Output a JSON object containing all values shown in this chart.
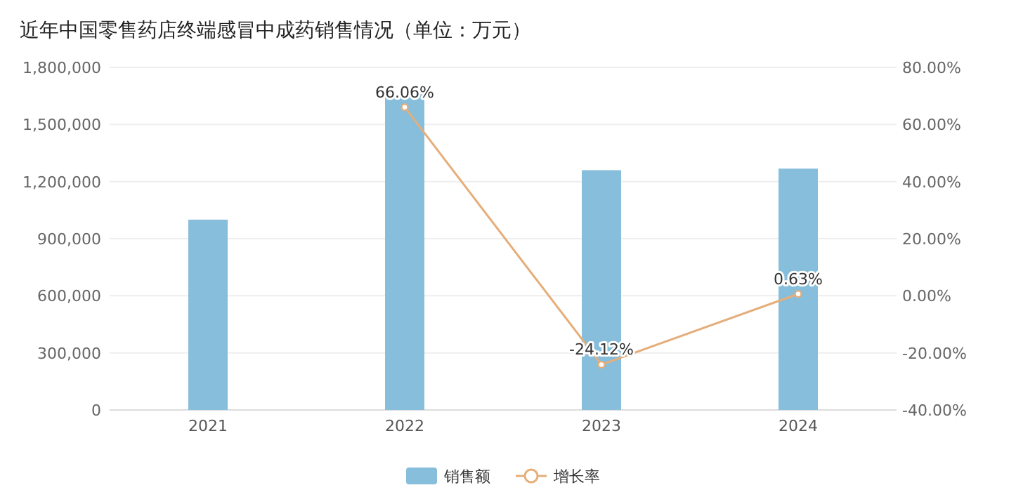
{
  "chart_data": {
    "type": "bar",
    "title": "近年中国零售药店终端感冒中成药销售情况（单位：万元）",
    "categories": [
      "2021",
      "2022",
      "2023",
      "2024"
    ],
    "series": [
      {
        "name": "销售额",
        "color": "#86bedb",
        "values": [
          1000000,
          1660000,
          1260000,
          1268000
        ]
      },
      {
        "name": "增长率",
        "type": "line",
        "axis": "y2",
        "color": "#e5ae7b",
        "marker": "circle",
        "values": [
          null,
          66.06,
          -24.12,
          0.63
        ],
        "value_labels": [
          null,
          "66.06%",
          "-24.12%",
          "0.63%"
        ]
      }
    ],
    "ylim": [
      0,
      1800000
    ],
    "yticks": [
      {
        "value": 0,
        "label": "0"
      },
      {
        "value": 300000,
        "label": "300,000"
      },
      {
        "value": 600000,
        "label": "600,000"
      },
      {
        "value": 900000,
        "label": "900,000"
      },
      {
        "value": 1200000,
        "label": "1,200,000"
      },
      {
        "value": 1500000,
        "label": "1,500,000"
      },
      {
        "value": 1800000,
        "label": "1,800,000"
      }
    ],
    "y2lim": [
      -40,
      80
    ],
    "y2ticks": [
      {
        "value": -40,
        "label": "-40.00%"
      },
      {
        "value": -20,
        "label": "-20.00%"
      },
      {
        "value": 0,
        "label": "0.00%"
      },
      {
        "value": 20,
        "label": "20.00%"
      },
      {
        "value": 40,
        "label": "40.00%"
      },
      {
        "value": 60,
        "label": "60.00%"
      },
      {
        "value": 80,
        "label": "80.00%"
      }
    ],
    "grid": "y",
    "legend": "bottom"
  }
}
